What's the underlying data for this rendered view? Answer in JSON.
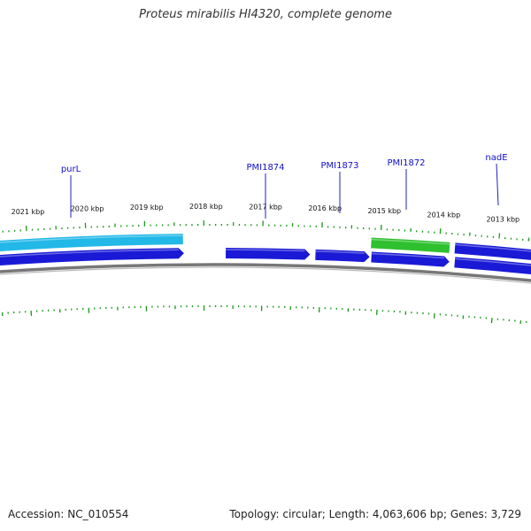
{
  "title": "Proteus mirabilis HI4320, complete genome",
  "footer": {
    "accession": "Accession: NC_010554",
    "stats": "Topology: circular; Length: 4,063,606 bp; Genes: 3,729"
  },
  "ruler": {
    "labels": [
      "2021 kbp",
      "2020 kbp",
      "2019 kbp",
      "2018 kbp",
      "2017 kbp",
      "2016 kbp",
      "2015 kbp",
      "2014 kbp",
      "2013 kbp"
    ]
  },
  "gene_labels": [
    "purL",
    "PMI1874",
    "PMI1873",
    "PMI1872",
    "nadE"
  ],
  "colors": {
    "forward_gene": "#22b8e8",
    "reverse_gene": "#1a1ad6",
    "highlight_gene": "#2fc02f",
    "tick": "#1a9a1a",
    "backbone": "#777777",
    "label_line": "#2020c0"
  }
}
